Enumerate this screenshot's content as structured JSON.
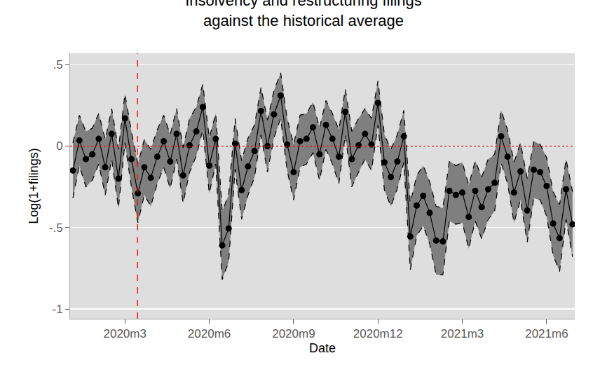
{
  "chart_data": {
    "type": "line",
    "title": "Insolvency and restructuring filings\nagainst the historical average",
    "x_label": "Date",
    "y_label": "Log(1+filings)",
    "color": "#000000",
    "marker": "circle",
    "grid": true,
    "x": [
      720.15,
      720.38,
      720.61,
      720.84,
      721.07,
      721.3,
      721.53,
      721.77,
      722.0,
      722.23,
      722.46,
      722.69,
      722.92,
      723.15,
      723.38,
      723.61,
      723.84,
      724.07,
      724.3,
      724.54,
      724.77,
      725.0,
      725.23,
      725.46,
      725.69,
      725.92,
      726.15,
      726.38,
      726.61,
      726.84,
      727.07,
      727.3,
      727.54,
      727.77,
      728.0,
      728.23,
      728.46,
      728.69,
      728.92,
      729.15,
      729.38,
      729.61,
      729.84,
      730.07,
      730.31,
      730.54,
      730.77,
      731.0,
      731.23,
      731.46,
      731.69,
      731.92,
      732.15,
      732.38,
      732.61,
      732.84,
      733.07,
      733.31,
      733.54,
      733.77,
      734.0,
      734.23,
      734.46,
      734.69,
      734.92,
      735.15,
      735.38,
      735.61,
      735.84,
      736.07,
      736.31,
      736.54,
      736.77,
      737.0,
      737.23,
      737.46,
      737.69,
      737.92
    ],
    "values": [
      -0.15,
      0.035,
      -0.08,
      -0.05,
      0.045,
      -0.13,
      0.075,
      -0.2,
      0.17,
      -0.08,
      -0.29,
      -0.13,
      -0.195,
      -0.065,
      0.03,
      -0.095,
      0.075,
      -0.18,
      0.005,
      0.09,
      0.24,
      -0.12,
      0.045,
      -0.61,
      -0.505,
      0.015,
      -0.27,
      -0.125,
      -0.03,
      0.215,
      0.0,
      0.195,
      0.31,
      0.01,
      -0.16,
      0.03,
      0.045,
      0.115,
      -0.05,
      0.13,
      0.045,
      -0.065,
      0.21,
      -0.08,
      0.005,
      0.075,
      0.01,
      0.265,
      -0.1,
      -0.19,
      -0.095,
      0.06,
      -0.555,
      -0.365,
      -0.305,
      -0.41,
      -0.58,
      -0.585,
      -0.275,
      -0.3,
      -0.285,
      -0.435,
      -0.275,
      -0.375,
      -0.265,
      -0.225,
      0.06,
      -0.065,
      -0.285,
      -0.155,
      -0.395,
      -0.145,
      -0.16,
      -0.245,
      -0.475,
      -0.565,
      -0.265,
      -0.48
    ],
    "lower": [
      -0.32,
      -0.12,
      -0.25,
      -0.21,
      -0.11,
      -0.3,
      -0.08,
      -0.38,
      0.02,
      -0.25,
      -0.47,
      -0.3,
      -0.37,
      -0.23,
      -0.13,
      -0.26,
      -0.08,
      -0.35,
      -0.16,
      -0.06,
      0.1,
      -0.29,
      -0.11,
      -0.82,
      -0.71,
      -0.14,
      -0.45,
      -0.3,
      -0.19,
      0.07,
      -0.16,
      0.05,
      0.17,
      -0.15,
      -0.33,
      -0.13,
      -0.11,
      -0.04,
      -0.21,
      -0.02,
      -0.11,
      -0.23,
      0.07,
      -0.25,
      -0.16,
      -0.08,
      -0.15,
      0.13,
      -0.27,
      -0.37,
      -0.26,
      -0.1,
      -0.76,
      -0.55,
      -0.49,
      -0.6,
      -0.79,
      -0.79,
      -0.46,
      -0.48,
      -0.47,
      -0.63,
      -0.46,
      -0.57,
      -0.45,
      -0.4,
      -0.1,
      -0.23,
      -0.47,
      -0.33,
      -0.59,
      -0.32,
      -0.33,
      -0.43,
      -0.67,
      -0.77,
      -0.45,
      -0.68
    ],
    "upper": [
      0.02,
      0.19,
      0.09,
      0.11,
      0.2,
      0.04,
      0.23,
      -0.02,
      0.32,
      0.09,
      -0.11,
      0.04,
      -0.02,
      0.1,
      0.19,
      0.07,
      0.23,
      -0.01,
      0.17,
      0.24,
      0.38,
      0.05,
      0.2,
      -0.4,
      -0.3,
      0.17,
      -0.09,
      0.05,
      0.13,
      0.36,
      0.16,
      0.34,
      0.45,
      0.17,
      0.01,
      0.19,
      0.2,
      0.27,
      0.11,
      0.28,
      0.2,
      0.1,
      0.35,
      0.09,
      0.17,
      0.23,
      0.17,
      0.4,
      0.07,
      -0.02,
      0.07,
      0.22,
      -0.35,
      -0.18,
      -0.12,
      -0.22,
      -0.37,
      -0.38,
      -0.09,
      -0.12,
      -0.1,
      -0.24,
      -0.09,
      -0.19,
      -0.08,
      -0.05,
      0.22,
      0.1,
      -0.1,
      0.02,
      -0.2,
      0.03,
      0.01,
      -0.07,
      -0.28,
      -0.36,
      -0.08,
      -0.28
    ],
    "xlim": [
      720.05,
      738.0
    ],
    "xticks": [
      {
        "value": 722,
        "label": "2020m3"
      },
      {
        "value": 725,
        "label": "2020m6"
      },
      {
        "value": 728,
        "label": "2020m9"
      },
      {
        "value": 731,
        "label": "2020m12"
      },
      {
        "value": 734,
        "label": "2021m3"
      },
      {
        "value": 737,
        "label": "2021m6"
      }
    ],
    "ylim": [
      -1.06,
      0.57
    ],
    "yticks": [
      -1,
      {
        "value": -0.5,
        "label": "-.5"
      },
      0,
      {
        "value": 0.5,
        "label": ".5"
      }
    ],
    "reference_lines": {
      "x": 722.45,
      "y": 0
    }
  }
}
